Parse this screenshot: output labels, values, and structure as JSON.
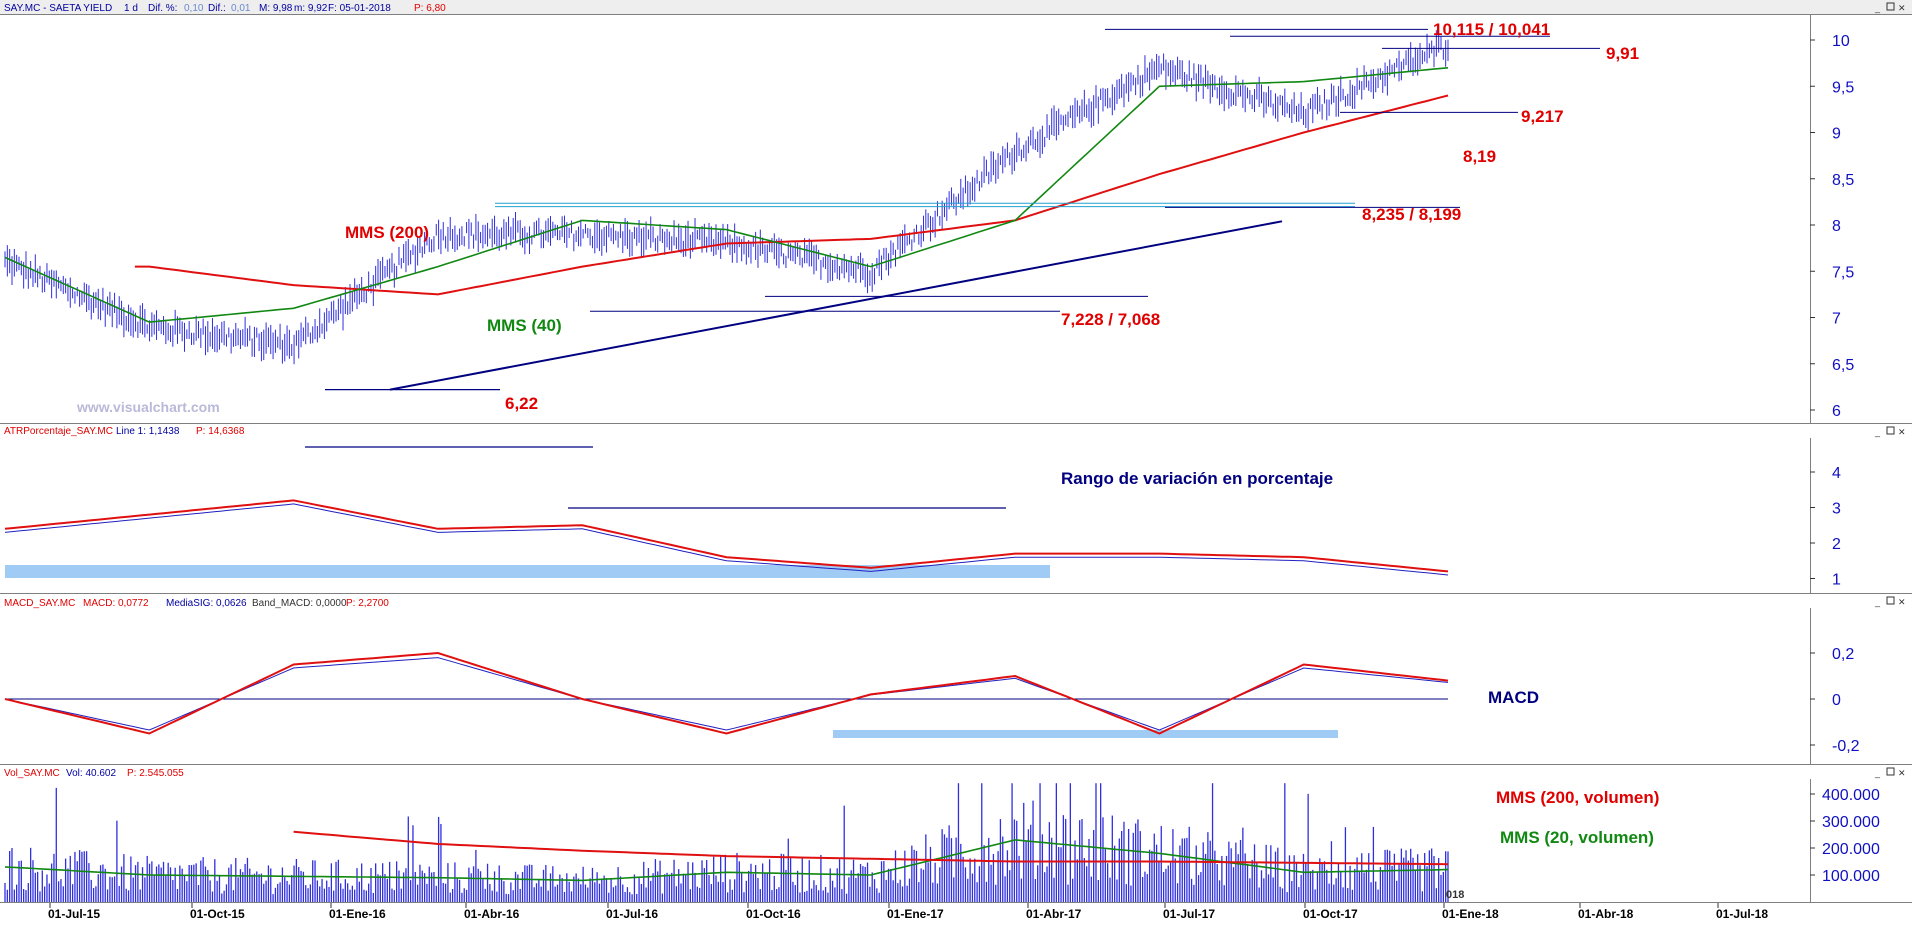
{
  "header": {
    "symbol": "SAY.MC - SAETA YIELD",
    "period": "1 d",
    "dif_pct_label": "Dif. %:",
    "dif_pct": "0,10",
    "dif_label": "Dif.:",
    "dif": "0,01",
    "max": "M: 9,98",
    "min": "m: 9,92",
    "close": "F: 05-01-2018",
    "price": "P: 6,80"
  },
  "panels": {
    "price": {
      "watermark": "www.visualchart.com",
      "y_ticks": [
        "10",
        "9,5",
        "9",
        "8,5",
        "8",
        "7,5",
        "7",
        "6,5",
        "6"
      ],
      "annotations": {
        "mms200": "MMS (200)",
        "mms40": "MMS (40)",
        "level_top": "10,115 / 10,041",
        "level_991": "9,91",
        "level_9217": "9,217",
        "level_819": "8,19",
        "level_8235": "8,235 / 8,199",
        "level_7228": "7,228 / 7,068",
        "level_622": "6,22"
      }
    },
    "atr": {
      "header_name": "ATRPorcentaje_SAY.MC",
      "header_line": "Line 1: 1,1438",
      "header_p": "P: 14,6368",
      "title": "Rango de variación en porcentaje",
      "y_ticks": [
        "4",
        "3",
        "2",
        "1"
      ]
    },
    "macd": {
      "header_name": "MACD_SAY.MC",
      "header_macd": "MACD: 0,0772",
      "header_sig": "MediaSIG: 0,0626",
      "header_band": "Band_MACD: 0,0000",
      "header_p": "P: 2,2700",
      "title": "MACD",
      "y_ticks": [
        "0,2",
        "0",
        "-0,2"
      ]
    },
    "volume": {
      "header_name": "Vol_SAY.MC",
      "header_vol": "Vol: 40.602",
      "header_p": "P: 2.545.055",
      "label_mms200": "MMS (200, volumen)",
      "label_mms20": "MMS (20, volumen)",
      "y_ticks": [
        "400.000",
        "300.000",
        "200.000",
        "100.000"
      ],
      "edge_label": "018"
    }
  },
  "x_axis": [
    "01-Jul-15",
    "01-Oct-15",
    "01-Ene-16",
    "01-Abr-16",
    "01-Jul-16",
    "01-Oct-16",
    "01-Ene-17",
    "01-Abr-17",
    "01-Jul-17",
    "01-Oct-17",
    "01-Ene-18",
    "01-Abr-18",
    "01-Jul-18"
  ],
  "colors": {
    "price_bars": "#2f2fe0",
    "mms200": "#e01010",
    "mms40": "#118811",
    "lines": "#000080",
    "annotation": "#e00000",
    "axis_text": "#1010c0",
    "band": "#9fcbf5",
    "atr_line": "#e01010",
    "signal": "#2020c0",
    "macd_title": "#000080"
  },
  "chart_data": [
    {
      "type": "line",
      "panel": "price",
      "x": [
        "01-Jul-15",
        "01-Oct-15",
        "01-Ene-16",
        "01-Abr-16",
        "01-Jul-16",
        "01-Oct-16",
        "01-Ene-17",
        "01-Abr-17",
        "01-Jul-17",
        "01-Oct-17",
        "01-Ene-18"
      ],
      "series": [
        {
          "name": "SAY.MC",
          "values": [
            7.6,
            6.9,
            6.7,
            7.9,
            7.9,
            7.8,
            7.5,
            8.8,
            9.7,
            9.2,
            9.95
          ]
        },
        {
          "name": "MMS (200)",
          "values": [
            null,
            7.55,
            7.35,
            7.25,
            7.55,
            7.8,
            7.85,
            8.05,
            8.55,
            9.0,
            9.4
          ]
        },
        {
          "name": "MMS (40)",
          "values": [
            7.65,
            6.95,
            7.1,
            7.55,
            8.05,
            7.95,
            7.55,
            8.05,
            9.5,
            9.55,
            9.7
          ]
        }
      ],
      "ylim": [
        6,
        10.3
      ],
      "levels": [
        10.115,
        10.041,
        9.91,
        9.217,
        8.19,
        8.235,
        8.199,
        7.228,
        7.068,
        6.22
      ]
    },
    {
      "type": "line",
      "panel": "atr",
      "x": [
        "01-Jul-15",
        "01-Oct-15",
        "01-Ene-16",
        "01-Abr-16",
        "01-Jul-16",
        "01-Oct-16",
        "01-Ene-17",
        "01-Abr-17",
        "01-Jul-17",
        "01-Oct-17",
        "01-Ene-18"
      ],
      "values": [
        2.4,
        2.8,
        3.2,
        2.4,
        2.5,
        1.6,
        1.3,
        1.7,
        1.7,
        1.6,
        1.2
      ],
      "ylim": [
        0.5,
        5
      ]
    },
    {
      "type": "line",
      "panel": "macd",
      "x": [
        "01-Jul-15",
        "01-Oct-15",
        "01-Ene-16",
        "01-Abr-16",
        "01-Jul-16",
        "01-Oct-16",
        "01-Ene-17",
        "01-Abr-17",
        "01-Jul-17",
        "01-Oct-17",
        "01-Ene-18"
      ],
      "values": [
        0.0,
        -0.15,
        0.15,
        0.2,
        0.0,
        -0.15,
        0.02,
        0.1,
        -0.15,
        0.15,
        0.08
      ],
      "ylim": [
        -0.3,
        0.42
      ]
    },
    {
      "type": "bar",
      "panel": "volume",
      "x": [
        "01-Jul-15",
        "01-Oct-15",
        "01-Ene-16",
        "01-Abr-16",
        "01-Jul-16",
        "01-Oct-16",
        "01-Ene-17",
        "01-Abr-17",
        "01-Jul-17",
        "01-Oct-17",
        "01-Ene-18"
      ],
      "series": [
        {
          "name": "MMS (200, volumen)",
          "values": [
            null,
            null,
            260000,
            215000,
            190000,
            170000,
            160000,
            150000,
            150000,
            145000,
            140000
          ]
        },
        {
          "name": "MMS (20, volumen)",
          "values": [
            130000,
            100000,
            95000,
            90000,
            80000,
            110000,
            100000,
            230000,
            180000,
            110000,
            120000
          ]
        }
      ],
      "ylim": [
        0,
        470000
      ]
    }
  ]
}
